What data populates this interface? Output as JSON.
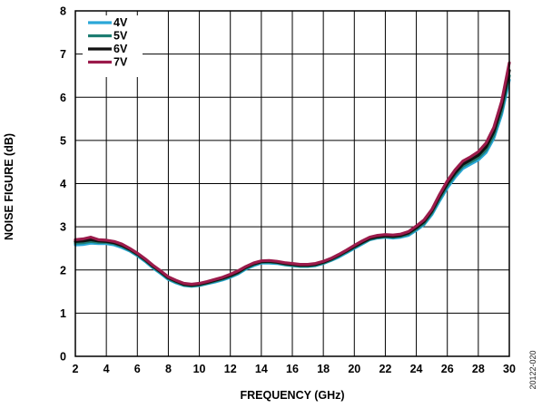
{
  "chart_data": {
    "type": "line",
    "title": "",
    "xlabel": "FREQUENCY (GHz)",
    "ylabel": "NOISE FIGURE (dB)",
    "xlim": [
      2,
      30
    ],
    "ylim": [
      0,
      8
    ],
    "xticks": [
      "2",
      "4",
      "6",
      "8",
      "10",
      "12",
      "14",
      "16",
      "18",
      "20",
      "22",
      "24",
      "26",
      "28",
      "30"
    ],
    "yticks": [
      "0",
      "1",
      "2",
      "3",
      "4",
      "5",
      "6",
      "7",
      "8"
    ],
    "grid": true,
    "legend_position": "top-left",
    "figure_id": "20122-020",
    "series": [
      {
        "name": "4V",
        "color": "#2AA7D8",
        "x": [
          2,
          2.5,
          3,
          3.5,
          4,
          4.5,
          5,
          5.5,
          6,
          6.5,
          7,
          7.5,
          8,
          8.5,
          9,
          9.5,
          10,
          10.5,
          11,
          11.5,
          12,
          12.5,
          13,
          13.5,
          14,
          14.5,
          15,
          15.5,
          16,
          16.5,
          17,
          17.5,
          18,
          18.5,
          19,
          19.5,
          20,
          20.5,
          21,
          21.5,
          22,
          22.5,
          23,
          23.5,
          24,
          24.5,
          25,
          25.5,
          26,
          26.5,
          27,
          27.5,
          28,
          28.5,
          29,
          29.5,
          30
        ],
        "y": [
          2.58,
          2.59,
          2.62,
          2.61,
          2.61,
          2.58,
          2.52,
          2.44,
          2.33,
          2.2,
          2.05,
          1.92,
          1.78,
          1.7,
          1.64,
          1.62,
          1.64,
          1.68,
          1.72,
          1.77,
          1.83,
          1.91,
          2.02,
          2.1,
          2.16,
          2.16,
          2.15,
          2.12,
          2.1,
          2.08,
          2.08,
          2.1,
          2.15,
          2.22,
          2.3,
          2.4,
          2.5,
          2.6,
          2.7,
          2.74,
          2.76,
          2.74,
          2.76,
          2.8,
          2.92,
          3.05,
          3.28,
          3.6,
          3.9,
          4.15,
          4.35,
          4.45,
          4.55,
          4.72,
          5.05,
          5.6,
          6.4
        ]
      },
      {
        "name": "5V",
        "color": "#1E7D72",
        "x": [
          2,
          2.5,
          3,
          3.5,
          4,
          4.5,
          5,
          5.5,
          6,
          6.5,
          7,
          7.5,
          8,
          8.5,
          9,
          9.5,
          10,
          10.5,
          11,
          11.5,
          12,
          12.5,
          13,
          13.5,
          14,
          14.5,
          15,
          15.5,
          16,
          16.5,
          17,
          17.5,
          18,
          18.5,
          19,
          19.5,
          20,
          20.5,
          21,
          21.5,
          22,
          22.5,
          23,
          23.5,
          24,
          24.5,
          25,
          25.5,
          26,
          26.5,
          27,
          27.5,
          28,
          28.5,
          29,
          29.5,
          30
        ],
        "y": [
          2.62,
          2.63,
          2.66,
          2.64,
          2.64,
          2.61,
          2.55,
          2.46,
          2.35,
          2.22,
          2.07,
          1.94,
          1.8,
          1.72,
          1.65,
          1.63,
          1.65,
          1.69,
          1.74,
          1.79,
          1.85,
          1.93,
          2.04,
          2.12,
          2.18,
          2.18,
          2.17,
          2.13,
          2.11,
          2.09,
          2.09,
          2.11,
          2.16,
          2.23,
          2.32,
          2.42,
          2.52,
          2.62,
          2.71,
          2.75,
          2.77,
          2.76,
          2.78,
          2.83,
          2.95,
          3.08,
          3.32,
          3.65,
          3.95,
          4.2,
          4.4,
          4.5,
          4.6,
          4.78,
          5.12,
          5.68,
          6.5
        ]
      },
      {
        "name": "6V",
        "color": "#111111",
        "x": [
          2,
          2.5,
          3,
          3.5,
          4,
          4.5,
          5,
          5.5,
          6,
          6.5,
          7,
          7.5,
          8,
          8.5,
          9,
          9.5,
          10,
          10.5,
          11,
          11.5,
          12,
          12.5,
          13,
          13.5,
          14,
          14.5,
          15,
          15.5,
          16,
          16.5,
          17,
          17.5,
          18,
          18.5,
          19,
          19.5,
          20,
          20.5,
          21,
          21.5,
          22,
          22.5,
          23,
          23.5,
          24,
          24.5,
          25,
          25.5,
          26,
          26.5,
          27,
          27.5,
          28,
          28.5,
          29,
          29.5,
          30
        ],
        "y": [
          2.66,
          2.67,
          2.7,
          2.67,
          2.66,
          2.63,
          2.57,
          2.48,
          2.37,
          2.24,
          2.09,
          1.96,
          1.82,
          1.74,
          1.67,
          1.65,
          1.67,
          1.71,
          1.76,
          1.81,
          1.87,
          1.95,
          2.06,
          2.14,
          2.19,
          2.2,
          2.18,
          2.15,
          2.13,
          2.11,
          2.11,
          2.13,
          2.18,
          2.25,
          2.34,
          2.44,
          2.54,
          2.64,
          2.73,
          2.77,
          2.79,
          2.78,
          2.8,
          2.86,
          2.98,
          3.12,
          3.36,
          3.7,
          4.0,
          4.25,
          4.45,
          4.55,
          4.66,
          4.85,
          5.2,
          5.78,
          6.62
        ]
      },
      {
        "name": "7V",
        "color": "#9B1B4B",
        "x": [
          2,
          2.5,
          3,
          3.5,
          4,
          4.5,
          5,
          5.5,
          6,
          6.5,
          7,
          7.5,
          8,
          8.5,
          9,
          9.5,
          10,
          10.5,
          11,
          11.5,
          12,
          12.5,
          13,
          13.5,
          14,
          14.5,
          15,
          15.5,
          16,
          16.5,
          17,
          17.5,
          18,
          18.5,
          19,
          19.5,
          20,
          20.5,
          21,
          21.5,
          22,
          22.5,
          23,
          23.5,
          24,
          24.5,
          25,
          25.5,
          26,
          26.5,
          27,
          27.5,
          28,
          28.5,
          29,
          29.5,
          30
        ],
        "y": [
          2.7,
          2.72,
          2.76,
          2.7,
          2.69,
          2.66,
          2.6,
          2.5,
          2.39,
          2.26,
          2.11,
          1.98,
          1.84,
          1.76,
          1.69,
          1.67,
          1.69,
          1.73,
          1.78,
          1.83,
          1.9,
          1.98,
          2.08,
          2.16,
          2.21,
          2.22,
          2.2,
          2.17,
          2.15,
          2.13,
          2.13,
          2.15,
          2.2,
          2.27,
          2.36,
          2.46,
          2.57,
          2.67,
          2.76,
          2.8,
          2.82,
          2.81,
          2.83,
          2.89,
          3.02,
          3.16,
          3.4,
          3.75,
          4.06,
          4.32,
          4.52,
          4.62,
          4.74,
          4.94,
          5.3,
          5.9,
          6.8
        ]
      }
    ]
  }
}
